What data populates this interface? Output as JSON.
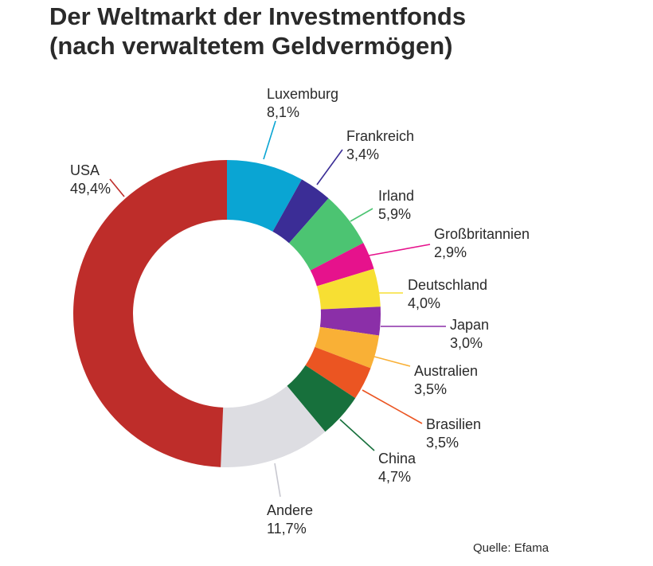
{
  "chart_data": {
    "type": "pie",
    "donut": true,
    "title_line1": "Der Weltmarkt der Investmentfonds",
    "title_line2": "(nach verwaltetem Geldvermögen)",
    "source": "Quelle: Efama",
    "slices": [
      {
        "label": "Luxemburg",
        "value": 8.1,
        "text": "8,1%",
        "color": "#0aa5d3"
      },
      {
        "label": "Frankreich",
        "value": 3.4,
        "text": "3,4%",
        "color": "#3b2d96"
      },
      {
        "label": "Irland",
        "value": 5.9,
        "text": "5,9%",
        "color": "#4cc472"
      },
      {
        "label": "Großbritannien",
        "value": 2.9,
        "text": "2,9%",
        "color": "#e6128c"
      },
      {
        "label": "Deutschland",
        "value": 4.0,
        "text": "4,0%",
        "color": "#f7df33"
      },
      {
        "label": "Japan",
        "value": 3.0,
        "text": "3,0%",
        "color": "#8b2fa8"
      },
      {
        "label": "Australien",
        "value": 3.5,
        "text": "3,5%",
        "color": "#f9b036"
      },
      {
        "label": "Brasilien",
        "value": 3.5,
        "text": "3,5%",
        "color": "#eb5522"
      },
      {
        "label": "China",
        "value": 4.7,
        "text": "4,7%",
        "color": "#17703c"
      },
      {
        "label": "Andere",
        "value": 11.7,
        "text": "11,7%",
        "color": "#dddde2"
      },
      {
        "label": "USA",
        "value": 49.4,
        "text": "49,4%",
        "color": "#be2d2a"
      }
    ]
  }
}
